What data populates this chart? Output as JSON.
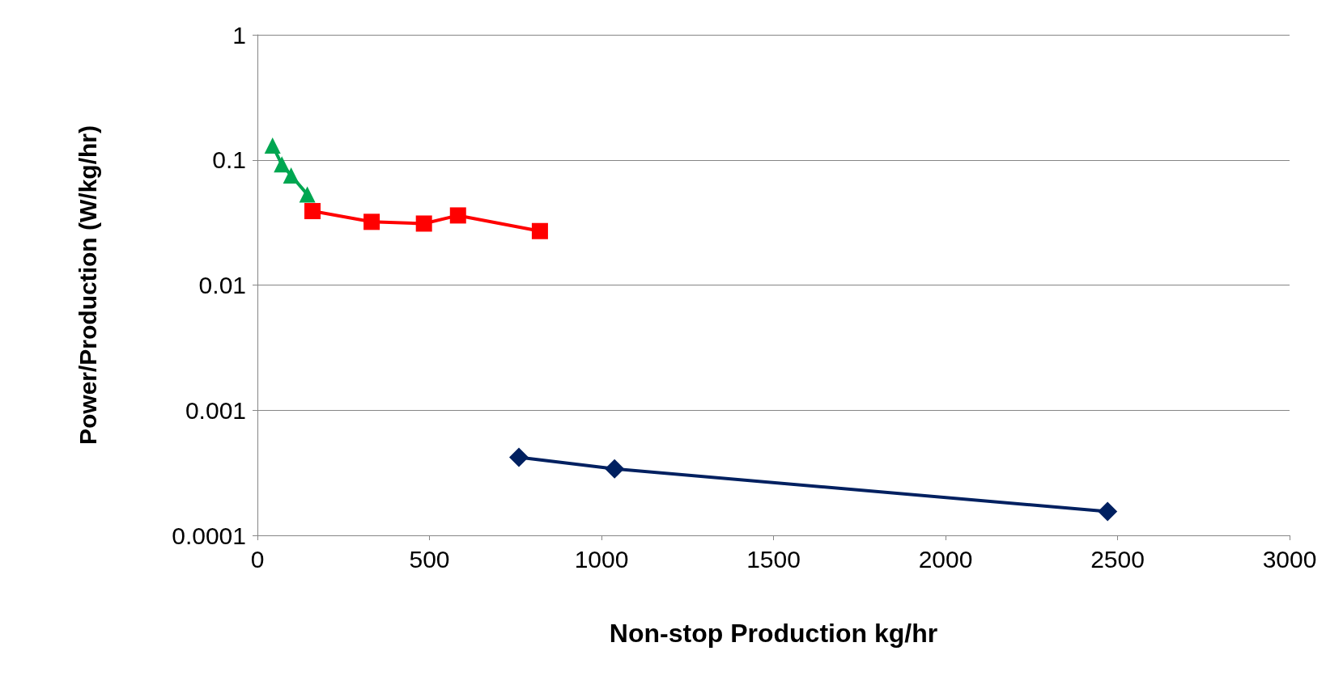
{
  "chart_data": {
    "type": "line",
    "xlabel": "Non-stop Production kg/hr",
    "ylabel": "Power/Production (W/kg/hr)",
    "log": "y",
    "grid": "y",
    "line_style": "solid",
    "xlim": [
      0,
      3000
    ],
    "xticks": [
      0,
      500,
      1000,
      1500,
      2000,
      2500,
      3000
    ],
    "ylim": [
      0.0001,
      1
    ],
    "yticks": [
      0.0001,
      0.001,
      0.01,
      0.1,
      1
    ],
    "series": [
      {
        "color": "#00a651",
        "marker": "triangle",
        "x": [
          44,
          71,
          98,
          145
        ],
        "values": [
          0.13,
          0.092,
          0.075,
          0.053
        ]
      },
      {
        "color": "#ff0000",
        "marker": "square",
        "x": [
          160,
          332,
          484,
          583,
          821
        ],
        "values": [
          0.039,
          0.032,
          0.031,
          0.036,
          0.027
        ]
      },
      {
        "color": "#002060",
        "marker": "diamond",
        "x": [
          760,
          1038,
          2471
        ],
        "values": [
          0.00042,
          0.00034,
          0.000155
        ]
      }
    ]
  }
}
